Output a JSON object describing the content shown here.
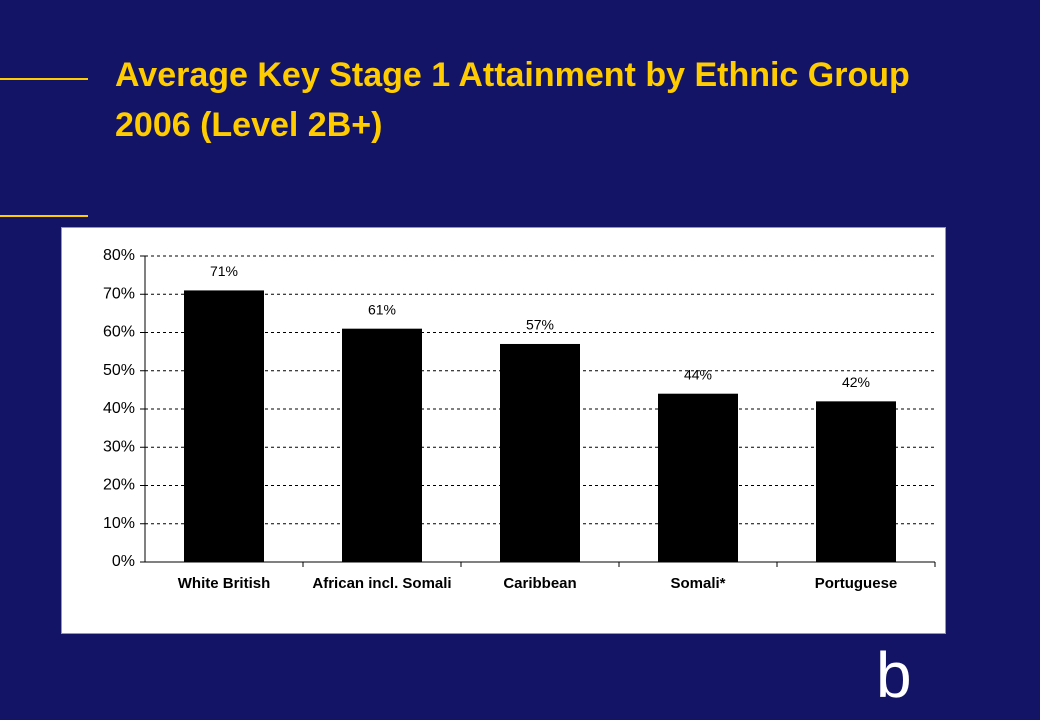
{
  "chart_data": {
    "type": "bar",
    "title": "Average Key Stage 1 Attainment by Ethnic Group 2006 (Level 2B+)",
    "categories": [
      "White British",
      "African incl. Somali",
      "Caribbean",
      "Somali*",
      "Portuguese"
    ],
    "values": [
      71,
      61,
      57,
      44,
      42
    ],
    "value_labels": [
      "71%",
      "61%",
      "57%",
      "44%",
      "42%"
    ],
    "color": "#000000",
    "ylim": [
      0,
      80
    ],
    "yticks": [
      {
        "value": 0,
        "label": "0%"
      },
      {
        "value": 10,
        "label": "10%"
      },
      {
        "value": 20,
        "label": "20%"
      },
      {
        "value": 30,
        "label": "30%"
      },
      {
        "value": 40,
        "label": "40%"
      },
      {
        "value": 50,
        "label": "50%"
      },
      {
        "value": 60,
        "label": "60%"
      },
      {
        "value": 70,
        "label": "70%"
      },
      {
        "value": 80,
        "label": "80%"
      }
    ],
    "grid": true
  },
  "logo": "b"
}
